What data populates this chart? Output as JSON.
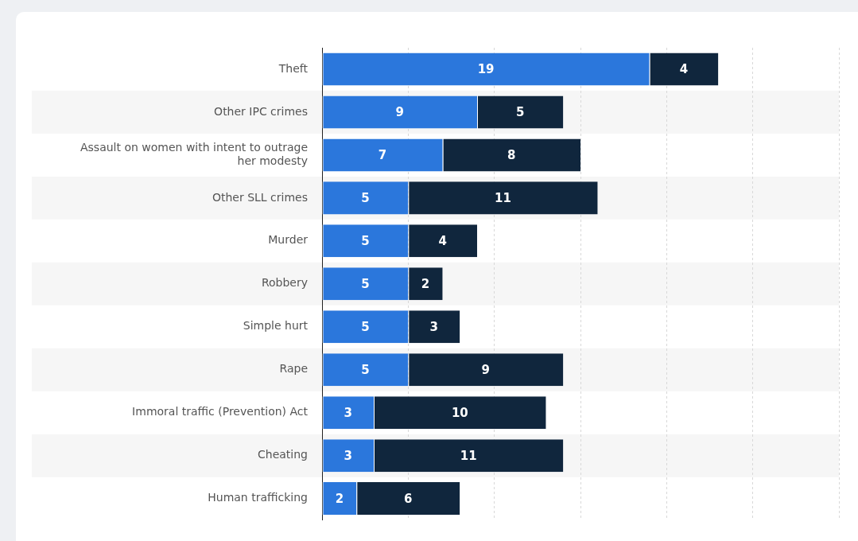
{
  "chart_data": {
    "type": "bar",
    "orientation": "horizontal",
    "stacked": true,
    "categories": [
      "Theft",
      "Other IPC crimes",
      "Assault on women with intent to outrage her modesty",
      "Other SLL crimes",
      "Murder",
      "Robbery",
      "Simple hurt",
      "Rape",
      "Immoral traffic (Prevention) Act",
      "Cheating",
      "Human trafficking"
    ],
    "series": [
      {
        "color": "#2b77dc",
        "values": [
          19,
          9,
          7,
          5,
          5,
          5,
          5,
          5,
          3,
          3,
          2
        ]
      },
      {
        "color": "#10263d",
        "values": [
          4,
          5,
          8,
          11,
          4,
          2,
          3,
          9,
          10,
          11,
          6
        ]
      }
    ],
    "xlim": [
      0,
      30
    ],
    "xticks": [
      {
        "value": 0,
        "label": null
      },
      {
        "value": 5,
        "label": null
      },
      {
        "value": 10,
        "label": null
      },
      {
        "value": 15,
        "label": null
      },
      {
        "value": 20,
        "label": null
      },
      {
        "value": 25,
        "label": null
      },
      {
        "value": 30,
        "label": null
      }
    ],
    "grid": "x",
    "tick_labels": "y",
    "data_labels": true
  }
}
